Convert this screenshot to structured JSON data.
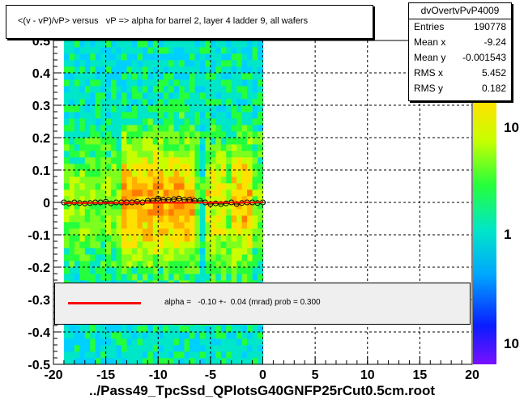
{
  "chart_data": {
    "type": "heatmap",
    "title": "<(v - vP)/vP> versus   vP => alpha for barrel 2, layer 4 ladder 9, all wafers",
    "xlabel": "../Pass49_TpcSsd_QPlotsG40GNFP25rCut0.5cm.root",
    "ylabel": "",
    "xlim": [
      -20,
      20
    ],
    "ylim": [
      -0.5,
      0.5
    ],
    "x_ticks": [
      "-20",
      "-15",
      "-10",
      "-5",
      "0",
      "5",
      "10",
      "15",
      "20"
    ],
    "y_ticks": [
      "-0.5",
      "-0.4",
      "-0.3",
      "-0.2",
      "-0.1",
      "0",
      "0.1",
      "0.2",
      "0.3",
      "0.4",
      "0.5"
    ],
    "z_scale": "log",
    "colorbar_ticks": [
      "10",
      "1",
      "10"
    ],
    "filled_x_range": [
      -19,
      0
    ],
    "grid": true,
    "profile_points": {
      "x": [
        -19.0,
        -18.5,
        -18.0,
        -17.5,
        -17.0,
        -16.5,
        -16.0,
        -15.5,
        -15.0,
        -14.5,
        -14.0,
        -13.5,
        -13.0,
        -12.5,
        -12.0,
        -11.5,
        -11.0,
        -10.5,
        -10.0,
        -9.5,
        -9.0,
        -8.5,
        -8.0,
        -7.5,
        -7.0,
        -6.5,
        -6.0,
        -5.5,
        -5.0,
        -4.5,
        -4.0,
        -3.5,
        -3.0,
        -2.5,
        -2.0,
        -1.5,
        -1.0,
        -0.5,
        0.0
      ],
      "y": [
        0.0,
        -0.003,
        0.0,
        -0.002,
        -0.003,
        -0.002,
        0.0,
        0.0,
        0.002,
        -0.003,
        0.0,
        0.0,
        0.0,
        0.0,
        0.002,
        0.0,
        0.005,
        0.005,
        0.012,
        0.008,
        0.008,
        0.01,
        0.012,
        0.008,
        0.008,
        0.005,
        0.005,
        0.0,
        -0.005,
        -0.003,
        -0.005,
        -0.003,
        0.0,
        -0.005,
        -0.002,
        0.0,
        0.0,
        -0.002,
        0.0
      ]
    },
    "fit_line": {
      "x": [
        -19,
        0
      ],
      "y": [
        -0.0019,
        0.0
      ]
    },
    "stats": {
      "name": "dvOvertvPvP4009",
      "rows": [
        {
          "label": "Entries",
          "value": "190778"
        },
        {
          "label": "Mean x",
          "value": "-9.24"
        },
        {
          "label": "Mean y",
          "value": "-0.001543"
        },
        {
          "label": "RMS x",
          "value": "5.452"
        },
        {
          "label": "RMS y",
          "value": "0.182"
        }
      ]
    },
    "legend": {
      "text": "alpha =   -0.10 +-  0.04 (mrad) prob = 0.300",
      "line_color": "#ff0000"
    }
  }
}
